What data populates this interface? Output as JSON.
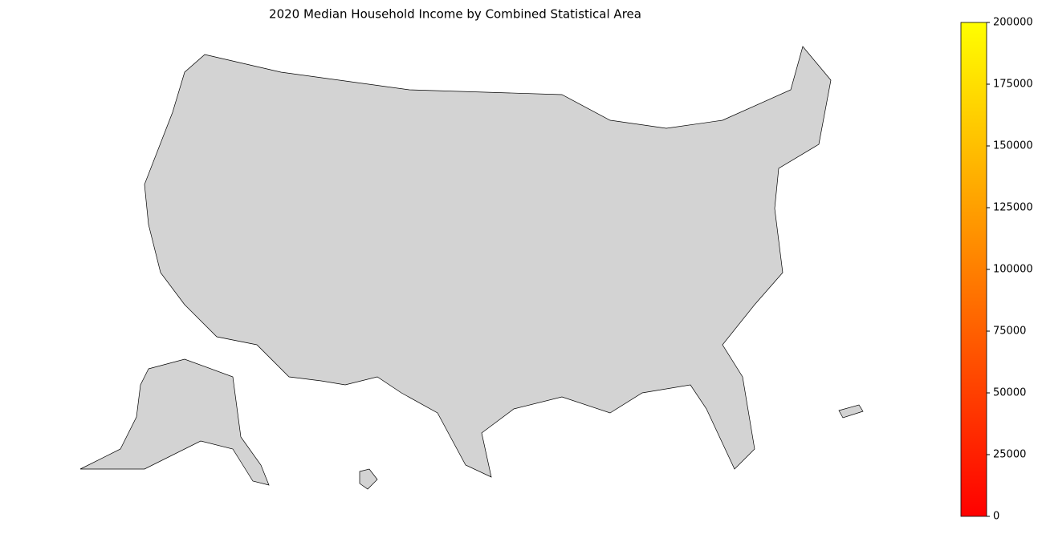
{
  "chart_data": {
    "type": "choropleth",
    "title": "2020 Median Household Income by Combined Statistical Area",
    "colorbar": {
      "lim": [
        0,
        200000
      ],
      "ticks": [
        0,
        25000,
        50000,
        75000,
        100000,
        125000,
        150000,
        175000,
        200000
      ],
      "colors": [
        "#ff0000",
        "#ffff00"
      ]
    }
  }
}
